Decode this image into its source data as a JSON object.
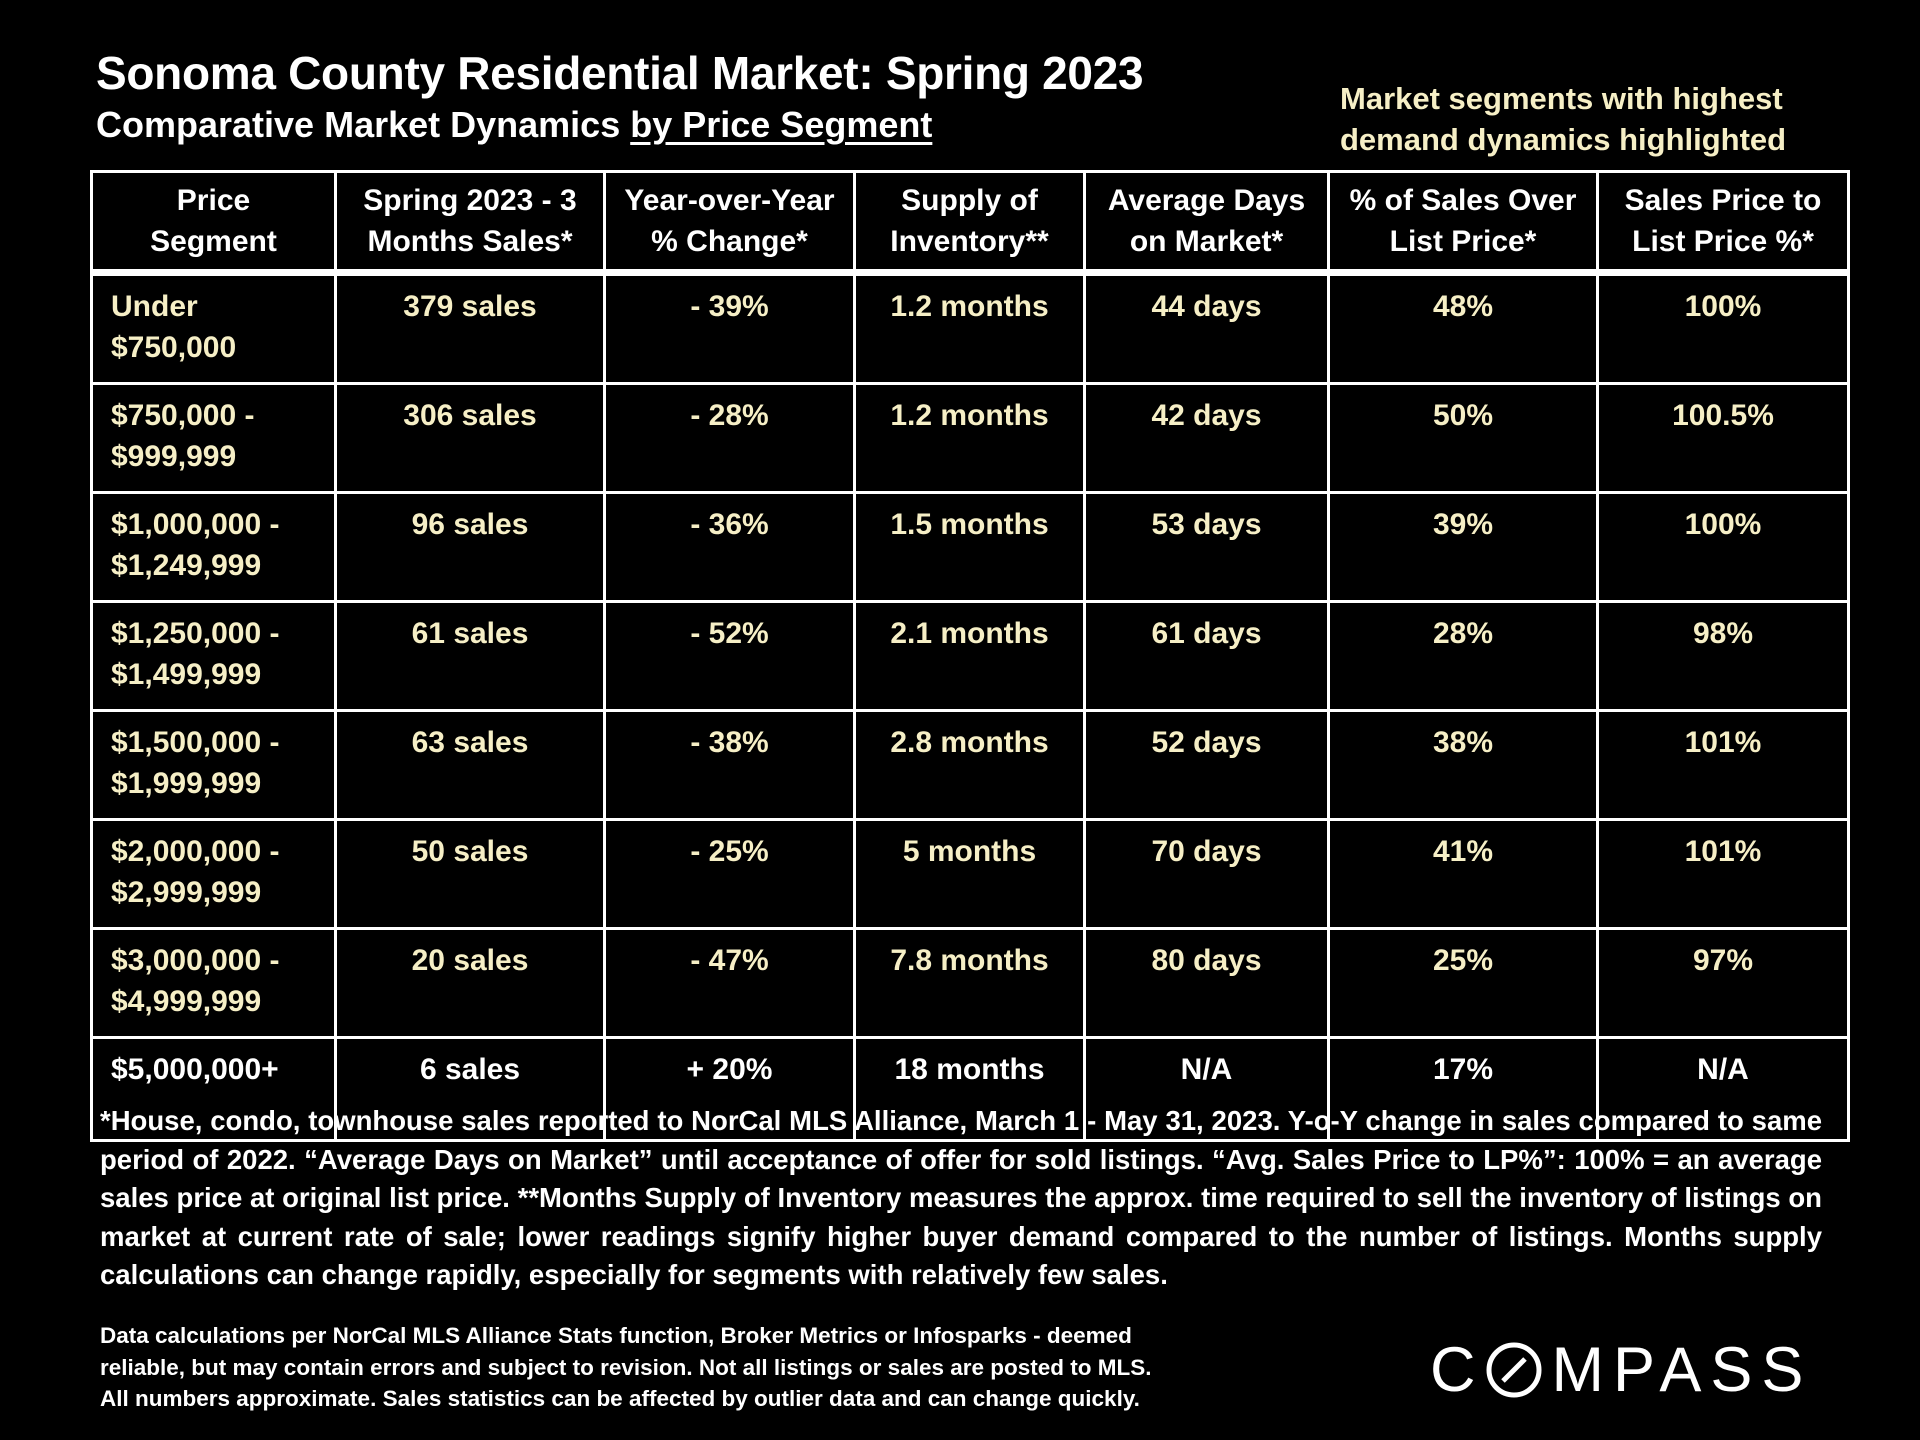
{
  "header": {
    "title": "Sonoma County Residential Market:  Spring 2023",
    "subtitle_prefix": "Comparative Market Dynamics ",
    "subtitle_underlined": "by Price Segment",
    "note_line1": "Market segments with highest",
    "note_line2": "demand dynamics highlighted"
  },
  "table": {
    "columns": [
      [
        "Price",
        "Segment"
      ],
      [
        "Spring 2023 - 3",
        "Months Sales*"
      ],
      [
        "Year-over-Year",
        "% Change*"
      ],
      [
        "Supply of",
        "Inventory**"
      ],
      [
        "Average Days",
        "on Market*"
      ],
      [
        "% of Sales Over",
        "List Price*"
      ],
      [
        "Sales Price to",
        "List Price %*"
      ]
    ],
    "rows": [
      {
        "segment": [
          "Under",
          "$750,000"
        ],
        "sales": "379 sales",
        "yoy": "- 39%",
        "supply": "1.2 months",
        "days": "44 days",
        "over_list": "48%",
        "sp_lp": "100%"
      },
      {
        "segment": [
          "$750,000 -",
          "$999,999"
        ],
        "sales": "306 sales",
        "yoy": "- 28%",
        "supply": "1.2 months",
        "days": "42 days",
        "over_list": "50%",
        "sp_lp": "100.5%"
      },
      {
        "segment": [
          "$1,000,000 -",
          "$1,249,999"
        ],
        "sales": "96 sales",
        "yoy": "- 36%",
        "supply": "1.5 months",
        "days": "53 days",
        "over_list": "39%",
        "sp_lp": "100%"
      },
      {
        "segment": [
          "$1,250,000 -",
          "$1,499,999"
        ],
        "sales": "61 sales",
        "yoy": "- 52%",
        "supply": "2.1 months",
        "days": "61 days",
        "over_list": "28%",
        "sp_lp": "98%"
      },
      {
        "segment": [
          "$1,500,000 -",
          "$1,999,999"
        ],
        "sales": "63 sales",
        "yoy": "- 38%",
        "supply": "2.8 months",
        "days": "52 days",
        "over_list": "38%",
        "sp_lp": "101%"
      },
      {
        "segment": [
          "$2,000,000 -",
          "$2,999,999"
        ],
        "sales": "50 sales",
        "yoy": "- 25%",
        "supply": "5 months",
        "days": "70 days",
        "over_list": "41%",
        "sp_lp": "101%"
      },
      {
        "segment": [
          "$3,000,000 -",
          "$4,999,999"
        ],
        "sales": "20 sales",
        "yoy": "- 47%",
        "supply": "7.8 months",
        "days": "80 days",
        "over_list": "25%",
        "sp_lp": "97%"
      },
      {
        "segment": [
          "$5,000,000+",
          ""
        ],
        "sales": "6 sales",
        "yoy": "+ 20%",
        "supply": "18 months",
        "days": "N/A",
        "over_list": "17%",
        "sp_lp": "N/A"
      }
    ]
  },
  "footnote": "*House, condo, townhouse sales reported to NorCal MLS Alliance, March 1 - May 31, 2023. Y-o-Y change in sales compared to same period of 2022. “Average Days on Market” until acceptance of offer for sold listings. “Avg. Sales Price to LP%”: 100% = an average sales price at original list price. **Months Supply of Inventory measures the approx. time required to sell the inventory of listings on market at current rate of sale; lower readings signify higher buyer demand compared to the number of listings. Months supply calculations can change rapidly, especially for segments with relatively few sales.",
  "disclaimer": {
    "line1": "Data calculations per NorCal MLS Alliance Stats function, Broker Metrics or Infosparks - deemed",
    "line2": "reliable, but may contain errors and subject to revision.  Not all listings or sales are posted to MLS.",
    "line3": "All numbers approximate. Sales statistics can be affected by outlier data and can change quickly."
  },
  "logo": {
    "brand": "COMPASS",
    "c1": "C",
    "rest": "MPASS"
  }
}
